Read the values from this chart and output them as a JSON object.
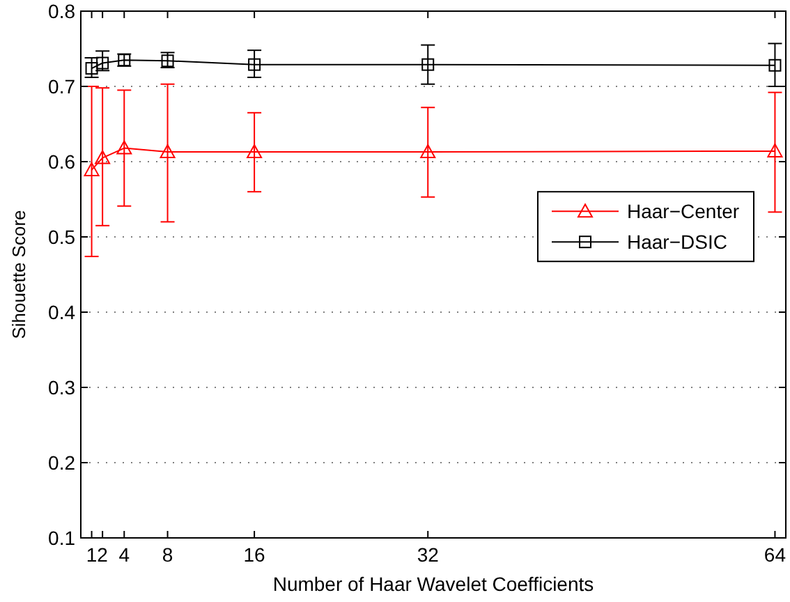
{
  "chart_data": {
    "type": "line",
    "xlabel": "Number of Haar Wavelet Coefficients",
    "ylabel": "Sihouette Score",
    "x": [
      1,
      2,
      4,
      8,
      16,
      32,
      64
    ],
    "xlim": [
      0,
      65
    ],
    "xticks": [
      1,
      2,
      4,
      8,
      16,
      32,
      64
    ],
    "ylim": [
      0.1,
      0.8
    ],
    "yticks": [
      0.1,
      0.2,
      0.3,
      0.4,
      0.5,
      0.6,
      0.7,
      0.8
    ],
    "grid": "y",
    "legend": "right",
    "line_style": "solid",
    "series": [
      {
        "name": "Haar−Center",
        "color": "#ff0000",
        "marker": "triangle",
        "values": [
          0.589,
          0.605,
          0.618,
          0.613,
          0.613,
          0.613,
          0.614
        ],
        "errors": [
          [
            0.474,
            0.7
          ],
          [
            0.515,
            0.698
          ],
          [
            0.541,
            0.695
          ],
          [
            0.52,
            0.703
          ],
          [
            0.56,
            0.665
          ],
          [
            0.553,
            0.672
          ],
          [
            0.533,
            0.692
          ]
        ]
      },
      {
        "name": "Haar−DSIC",
        "color": "#000000",
        "marker": "square",
        "values": [
          0.724,
          0.731,
          0.735,
          0.734,
          0.729,
          0.729,
          0.728
        ],
        "errors": [
          [
            0.712,
            0.738
          ],
          [
            0.721,
            0.747
          ],
          [
            0.727,
            0.743
          ],
          [
            0.725,
            0.745
          ],
          [
            0.712,
            0.748
          ],
          [
            0.703,
            0.755
          ],
          [
            0.7,
            0.757
          ]
        ]
      }
    ]
  }
}
